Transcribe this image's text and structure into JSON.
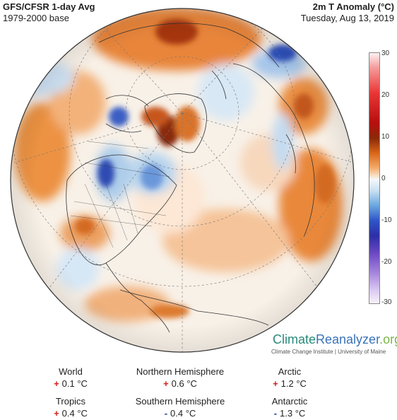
{
  "header": {
    "title": "GFS/CFSR 1-day Avg",
    "base": "1979-2000 base",
    "variable": "2m T Anomaly (°C)",
    "date": "Tuesday, Aug 13, 2019"
  },
  "colorbar": {
    "ticks": [
      "30",
      "20",
      "10",
      "0",
      "-10",
      "-20",
      "-30"
    ],
    "range": [
      -30,
      30
    ]
  },
  "brand": {
    "part1": "Climate",
    "part2": "Reanalyzer",
    "part3": ".org",
    "subtitle": "Climate Change Institute | University of Maine"
  },
  "stats": [
    {
      "label": "World",
      "sign": "+",
      "value": "0.1 °C"
    },
    {
      "label": "Northern Hemisphere",
      "sign": "+",
      "value": "0.6 °C"
    },
    {
      "label": "Arctic",
      "sign": "+",
      "value": "1.2 °C"
    },
    {
      "label": "Tropics",
      "sign": "+",
      "value": "0.4 °C"
    },
    {
      "label": "Southern Hemisphere",
      "sign": "-",
      "value": "0.4 °C"
    },
    {
      "label": "Antarctic",
      "sign": "-",
      "value": "1.3 °C"
    }
  ],
  "colors": {
    "warm": "#e3772a",
    "hot": "#a52a0a",
    "cool": "#9cc3e8",
    "cold": "#2c4fb5",
    "neutral": "#f7f3ee"
  }
}
